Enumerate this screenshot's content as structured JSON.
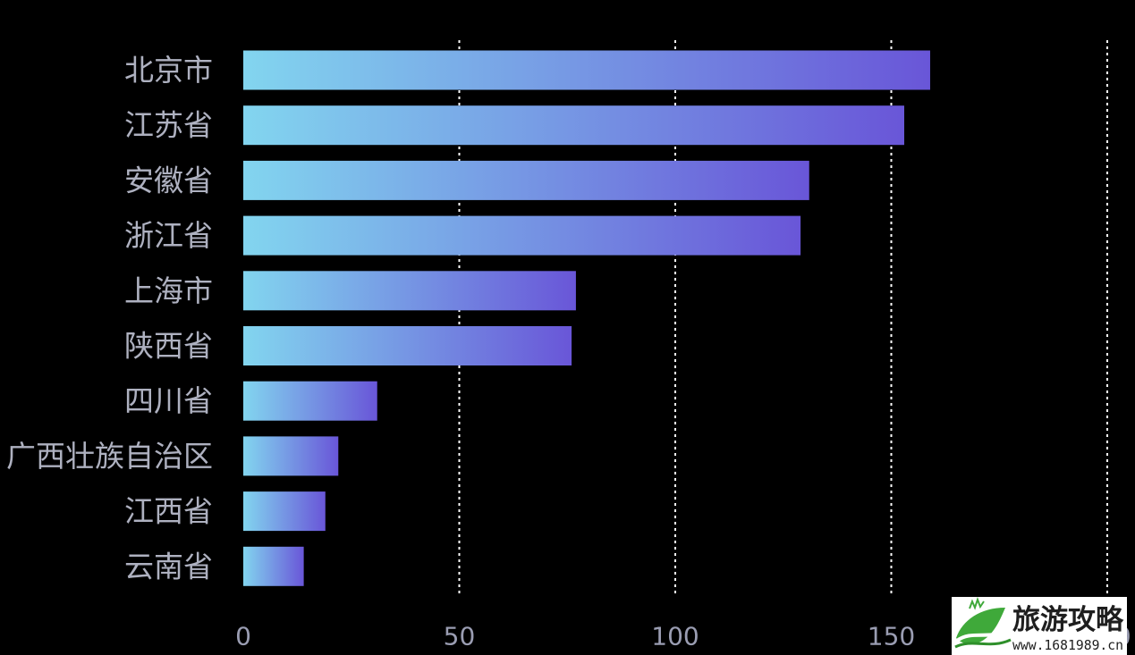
{
  "chart_data": {
    "type": "bar",
    "orientation": "horizontal",
    "categories": [
      "北京市",
      "江苏省",
      "安徽省",
      "浙江省",
      "上海市",
      "陕西省",
      "四川省",
      "广西壮族自治区",
      "江西省",
      "云南省"
    ],
    "values": [
      159,
      153,
      131,
      129,
      77,
      76,
      31,
      22,
      19,
      14
    ],
    "xlim": [
      0,
      200
    ],
    "xticks": [
      0,
      50,
      100,
      150,
      200
    ],
    "grid": true,
    "legend": "none"
  },
  "colors": {
    "background": "#000000",
    "bar_gradient_start": "#82d5ef",
    "bar_gradient_end": "#6956d8",
    "gridline": "#ffffff",
    "category_label": "#aeb1c0",
    "tick_label": "#9a9db2",
    "watermark_background": "#ffffff",
    "watermark_logo": "#3fa93a",
    "watermark_logo_dark": "#2e8f2a",
    "watermark_text": "#1e1e1e"
  },
  "watermark": {
    "title": "旅游攻略",
    "url": "www.1681989.cn",
    "logo_icon": "leaf-mountain-icon"
  }
}
